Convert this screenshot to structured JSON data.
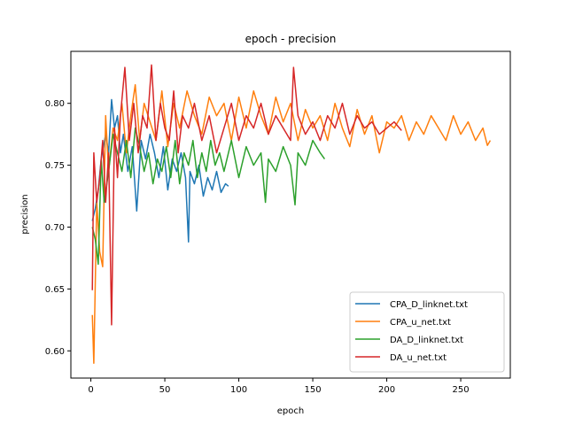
{
  "chart_data": {
    "type": "line",
    "title": "epoch - precision",
    "xlabel": "epoch",
    "ylabel": "precision",
    "xlim": [
      -13.5,
      283.5
    ],
    "ylim": [
      0.578,
      0.842
    ],
    "xticks": [
      0,
      50,
      100,
      150,
      200,
      250
    ],
    "yticks": [
      0.6,
      0.65,
      0.7,
      0.75,
      0.8
    ],
    "ytick_labels": [
      "0.60",
      "0.65",
      "0.70",
      "0.75",
      "0.80"
    ],
    "grid": false,
    "legend_position": "lower-right",
    "series": [
      {
        "name": "CPA_D_linknet.txt",
        "color": "#1f77b4",
        "x": [
          1,
          3,
          5,
          7,
          10,
          12,
          14,
          16,
          18,
          20,
          22,
          25,
          28,
          31,
          34,
          37,
          40,
          43,
          46,
          49,
          52,
          55,
          58,
          61,
          64,
          66,
          67,
          70,
          73,
          76,
          79,
          82,
          85,
          88,
          91,
          93
        ],
        "y": [
          0.705,
          0.715,
          0.73,
          0.755,
          0.775,
          0.76,
          0.803,
          0.78,
          0.79,
          0.76,
          0.775,
          0.745,
          0.765,
          0.713,
          0.77,
          0.755,
          0.775,
          0.76,
          0.74,
          0.765,
          0.73,
          0.755,
          0.745,
          0.76,
          0.74,
          0.688,
          0.745,
          0.735,
          0.75,
          0.725,
          0.74,
          0.73,
          0.745,
          0.728,
          0.735,
          0.733
        ]
      },
      {
        "name": "CPA_u_net.txt",
        "color": "#ff7f0e",
        "x": [
          1,
          2,
          4,
          6,
          8,
          10,
          12,
          15,
          18,
          21,
          24,
          27,
          30,
          33,
          36,
          40,
          44,
          48,
          52,
          56,
          60,
          65,
          70,
          75,
          80,
          85,
          90,
          95,
          100,
          105,
          110,
          115,
          120,
          125,
          130,
          135,
          140,
          145,
          150,
          155,
          160,
          165,
          170,
          175,
          180,
          185,
          190,
          195,
          200,
          205,
          210,
          215,
          220,
          225,
          230,
          235,
          240,
          245,
          250,
          255,
          260,
          265,
          268,
          270
        ],
        "y": [
          0.629,
          0.59,
          0.72,
          0.68,
          0.668,
          0.79,
          0.745,
          0.78,
          0.77,
          0.8,
          0.76,
          0.79,
          0.815,
          0.77,
          0.8,
          0.785,
          0.77,
          0.81,
          0.765,
          0.8,
          0.78,
          0.81,
          0.79,
          0.775,
          0.805,
          0.79,
          0.8,
          0.77,
          0.805,
          0.78,
          0.81,
          0.79,
          0.775,
          0.805,
          0.785,
          0.8,
          0.77,
          0.795,
          0.78,
          0.79,
          0.77,
          0.8,
          0.78,
          0.765,
          0.795,
          0.775,
          0.79,
          0.76,
          0.785,
          0.78,
          0.79,
          0.77,
          0.785,
          0.775,
          0.79,
          0.78,
          0.77,
          0.79,
          0.775,
          0.785,
          0.77,
          0.78,
          0.766,
          0.77
        ]
      },
      {
        "name": "DA_D_linknet.txt",
        "color": "#2ca02c",
        "x": [
          1,
          3,
          5,
          7,
          9,
          12,
          15,
          18,
          21,
          24,
          27,
          30,
          33,
          36,
          39,
          42,
          45,
          48,
          51,
          54,
          57,
          60,
          63,
          66,
          69,
          72,
          75,
          78,
          81,
          84,
          87,
          90,
          95,
          100,
          105,
          110,
          115,
          118,
          120,
          125,
          130,
          135,
          138,
          140,
          145,
          150,
          155,
          158
        ],
        "y": [
          0.7,
          0.69,
          0.67,
          0.755,
          0.72,
          0.745,
          0.775,
          0.76,
          0.745,
          0.77,
          0.74,
          0.78,
          0.765,
          0.745,
          0.76,
          0.735,
          0.755,
          0.745,
          0.765,
          0.74,
          0.77,
          0.735,
          0.76,
          0.75,
          0.77,
          0.74,
          0.76,
          0.745,
          0.77,
          0.75,
          0.76,
          0.745,
          0.77,
          0.74,
          0.765,
          0.75,
          0.76,
          0.72,
          0.755,
          0.745,
          0.765,
          0.75,
          0.718,
          0.76,
          0.75,
          0.77,
          0.76,
          0.755
        ]
      },
      {
        "name": "DA_u_net.txt",
        "color": "#d62728",
        "x": [
          1,
          2,
          4,
          6,
          8,
          10,
          12,
          14,
          16,
          18,
          20,
          23,
          26,
          29,
          32,
          35,
          38,
          41,
          44,
          47,
          50,
          53,
          56,
          59,
          62,
          66,
          70,
          75,
          80,
          85,
          90,
          95,
          100,
          105,
          110,
          115,
          120,
          125,
          130,
          135,
          137,
          140,
          145,
          150,
          155,
          160,
          165,
          170,
          175,
          180,
          185,
          190,
          195,
          200,
          205,
          210
        ],
        "y": [
          0.649,
          0.76,
          0.72,
          0.74,
          0.77,
          0.72,
          0.76,
          0.621,
          0.78,
          0.74,
          0.79,
          0.829,
          0.77,
          0.8,
          0.76,
          0.79,
          0.78,
          0.831,
          0.77,
          0.8,
          0.78,
          0.77,
          0.81,
          0.76,
          0.79,
          0.78,
          0.8,
          0.77,
          0.79,
          0.76,
          0.78,
          0.8,
          0.77,
          0.79,
          0.78,
          0.8,
          0.775,
          0.79,
          0.78,
          0.77,
          0.829,
          0.79,
          0.775,
          0.785,
          0.77,
          0.79,
          0.78,
          0.8,
          0.775,
          0.79,
          0.78,
          0.785,
          0.775,
          0.78,
          0.785,
          0.778
        ]
      }
    ]
  }
}
